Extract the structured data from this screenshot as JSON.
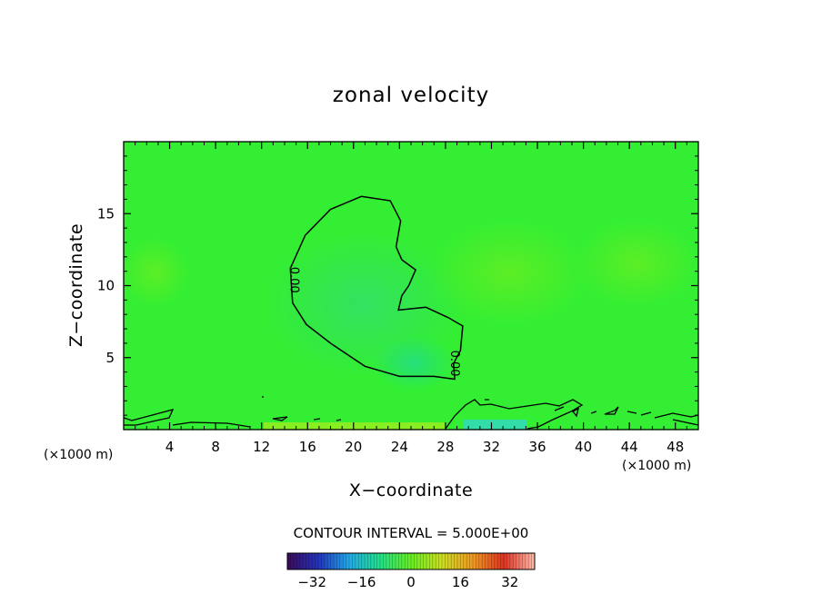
{
  "chart_data": {
    "type": "heatmap",
    "title": "zonal velocity",
    "xlabel": "X−coordinate",
    "ylabel": "Z−coordinate",
    "x_unit": "(×1000 m)",
    "z_unit": "(×1000 m)",
    "xlim": [
      0,
      50
    ],
    "ylim": [
      0,
      20
    ],
    "x_ticks": [
      4,
      8,
      12,
      16,
      20,
      24,
      28,
      32,
      36,
      40,
      44,
      48
    ],
    "y_ticks": [
      5,
      10,
      15
    ],
    "contour_interval_text": "CONTOUR INTERVAL = 5.000E+00",
    "contour_labels": [
      {
        "text": "0.00",
        "x": 14.5,
        "z": 10.4
      },
      {
        "text": "0.00",
        "x": 28.5,
        "z": 4.6
      }
    ],
    "zero_contour": [
      [
        20.7,
        16.2
      ],
      [
        23.2,
        15.9
      ],
      [
        24.1,
        14.5
      ],
      [
        23.7,
        12.7
      ],
      [
        24.2,
        11.8
      ],
      [
        25.4,
        11.1
      ],
      [
        24.8,
        10.0
      ],
      [
        24.2,
        9.3
      ],
      [
        23.9,
        8.3
      ],
      [
        26.3,
        8.5
      ],
      [
        28.2,
        7.8
      ],
      [
        29.5,
        7.2
      ],
      [
        29.3,
        5.5
      ],
      [
        28.7,
        4.6
      ],
      [
        28.8,
        3.5
      ],
      [
        27.0,
        3.7
      ],
      [
        24.0,
        3.7
      ],
      [
        21.0,
        4.4
      ],
      [
        18.0,
        6.0
      ],
      [
        15.9,
        7.3
      ],
      [
        14.7,
        8.8
      ],
      [
        14.5,
        11.2
      ],
      [
        15.8,
        13.5
      ],
      [
        18.0,
        15.3
      ],
      [
        20.7,
        16.2
      ]
    ],
    "colorbar": {
      "ticks": [
        -32,
        -16,
        0,
        16,
        32
      ],
      "range": [
        -40,
        40
      ],
      "colors": [
        "#3a0a5a",
        "#2233bb",
        "#22a8e8",
        "#22e088",
        "#66ee22",
        "#ccdd22",
        "#ee9922",
        "#dd3322",
        "#ffbbaa"
      ]
    },
    "field_base_color": "#33ee33"
  }
}
